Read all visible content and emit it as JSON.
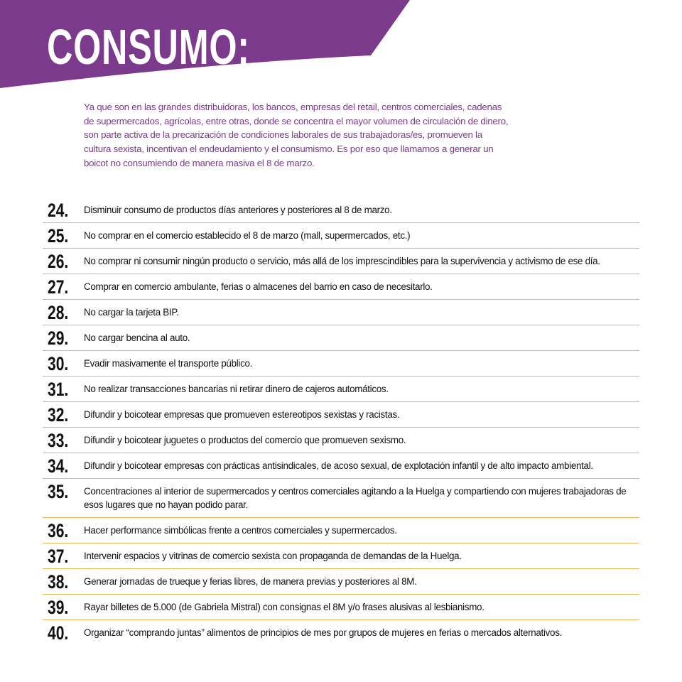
{
  "header": {
    "title": "CONSUMO:",
    "color": "#7b3a8c"
  },
  "intro": "Ya que son en las grandes distribuidoras, los bancos, empresas del retail, centros comerciales, cadenas de supermercados, agrícolas, entre otras, donde se concentra el mayor volumen de circulación de dinero, son parte activa de la precarización de condiciones laborales de sus trabajadoras/es, promueven la cultura sexista, incentivan el endeudamiento y el consumismo. Es por eso que llamamos a generar un boicot no consumiendo de manera masiva el 8 de marzo.",
  "items": [
    {
      "num": "24.",
      "text": "Disminuir consumo de productos días anteriores y posteriores al 8 de marzo."
    },
    {
      "num": "25.",
      "text": "No comprar en el comercio establecido el 8 de marzo (mall, supermercados, etc.)"
    },
    {
      "num": "26.",
      "text": "No comprar ni consumir ningún producto o servicio, más allá de los imprescindibles para la supervivencia y activismo de ese día."
    },
    {
      "num": "27.",
      "text": "Comprar en comercio ambulante, ferias o almacenes del barrio en caso de necesitarlo."
    },
    {
      "num": "28.",
      "text": "No cargar la tarjeta BIP."
    },
    {
      "num": "29.",
      "text": "No cargar bencina al auto."
    },
    {
      "num": "30.",
      "text": "Evadir masivamente el transporte público."
    },
    {
      "num": "31.",
      "text": "No realizar transacciones bancarias ni retirar dinero de cajeros automáticos."
    },
    {
      "num": "32.",
      "text": "Difundir y boicotear empresas que promueven estereotipos sexistas y racistas."
    },
    {
      "num": "33.",
      "text": "Difundir y boicotear juguetes o productos del comercio que promueven sexismo."
    },
    {
      "num": "34.",
      "text": "Difundir y boicotear empresas con prácticas antisindicales, de acoso sexual, de explotación infantil y de alto impacto ambiental."
    },
    {
      "num": "35.",
      "text": "Concentraciones al interior de supermercados y centros comerciales agitando a la Huelga y compartiendo con mujeres trabajadoras de esos lugares que no hayan podido parar."
    },
    {
      "num": "36.",
      "text": "Hacer performance simbólicas frente a centros comerciales y supermercados."
    },
    {
      "num": "37.",
      "text": "Intervenir espacios y vitrinas de comercio sexista con propaganda de demandas de la Huelga."
    },
    {
      "num": "38.",
      "text": "Generar jornadas de trueque y ferias libres, de manera previas y posteriores al 8M."
    },
    {
      "num": "39.",
      "text": "Rayar billetes de 5.000 (de Gabriela Mistral) con consignas el 8M y/o frases alusivas al lesbianismo."
    },
    {
      "num": "40.",
      "text": "Organizar “comprando juntas” alimentos de principios de mes por grupos de mujeres en ferias o mercados alternativos."
    }
  ]
}
